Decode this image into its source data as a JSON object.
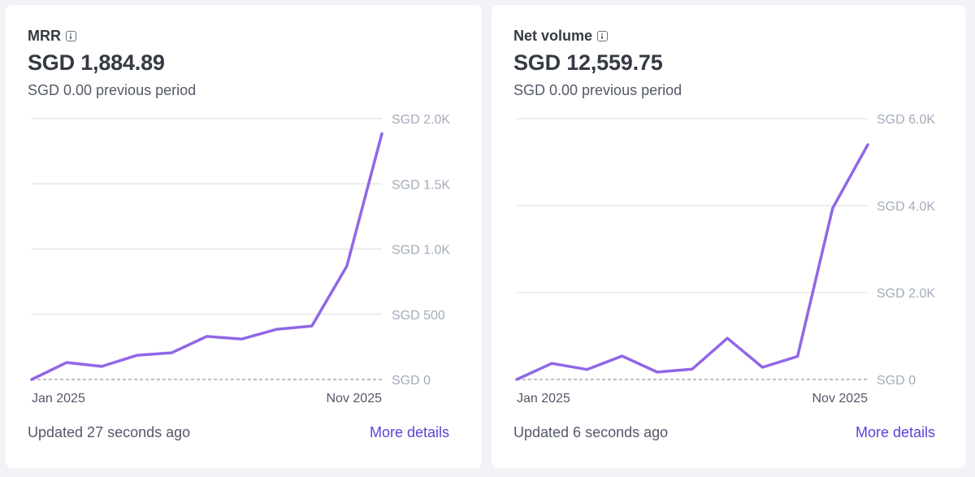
{
  "cards": [
    {
      "title": "MRR",
      "value": "SGD 1,884.89",
      "previous": "SGD 0.00 previous period",
      "updated": "Updated 27 seconds ago",
      "link": "More details"
    },
    {
      "title": "Net volume",
      "value": "SGD 12,559.75",
      "previous": "SGD 0.00 previous period",
      "updated": "Updated 6 seconds ago",
      "link": "More details"
    }
  ],
  "colors": {
    "line": "#9067e6",
    "grid": "#d5dbe1",
    "baseline_dash": "#a3acba",
    "axis_text": "#a3acba",
    "link": "#5b44d6"
  },
  "chart_data": [
    {
      "type": "line",
      "x_labels": [
        "Jan 2025",
        "Nov 2025"
      ],
      "ylim": [
        0,
        2000
      ],
      "yticks": [
        0,
        500,
        1000,
        1500,
        2000
      ],
      "ytick_labels": [
        "SGD 0",
        "SGD 500",
        "SGD 1.0K",
        "SGD 1.5K",
        "SGD 2.0K"
      ],
      "grid": true,
      "series": [
        {
          "values": [
            0,
            130,
            100,
            185,
            205,
            330,
            310,
            385,
            410,
            870,
            1885
          ]
        }
      ]
    },
    {
      "type": "line",
      "x_labels": [
        "Jan 2025",
        "Nov 2025"
      ],
      "ylim": [
        0,
        6000
      ],
      "yticks": [
        0,
        2000,
        4000,
        6000
      ],
      "ytick_labels": [
        "SGD 0",
        "SGD 2.0K",
        "SGD 4.0K",
        "SGD 6.0K"
      ],
      "grid": true,
      "series": [
        {
          "values": [
            0,
            370,
            230,
            540,
            170,
            240,
            950,
            280,
            530,
            3940,
            5400
          ]
        }
      ]
    }
  ]
}
